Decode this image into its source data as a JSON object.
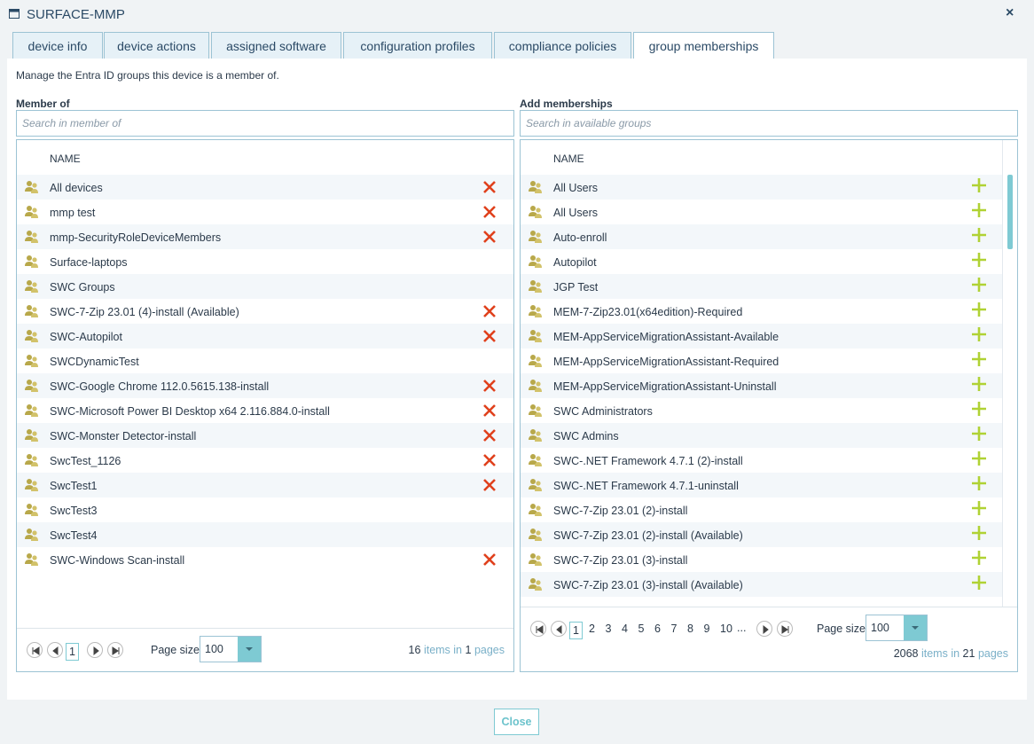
{
  "window": {
    "title": "SURFACE-MMP",
    "close": "×"
  },
  "tabs": [
    "device info",
    "device actions",
    "assigned software",
    "configuration profiles",
    "compliance policies",
    "group memberships"
  ],
  "description": "Manage the Entra ID groups this device is a member of.",
  "member_of": {
    "heading": "Member of",
    "search_placeholder": "Search in member of",
    "column": "NAME",
    "rows": [
      {
        "name": "All devices",
        "removable": true
      },
      {
        "name": "mmp test",
        "removable": true
      },
      {
        "name": "mmp-SecurityRoleDeviceMembers",
        "removable": true
      },
      {
        "name": "Surface-laptops",
        "removable": false
      },
      {
        "name": "SWC Groups",
        "removable": false
      },
      {
        "name": "SWC-7-Zip 23.01 (4)-install (Available)",
        "removable": true
      },
      {
        "name": "SWC-Autopilot",
        "removable": true
      },
      {
        "name": "SWCDynamicTest",
        "removable": false
      },
      {
        "name": "SWC-Google Chrome 112.0.5615.138-install",
        "removable": true
      },
      {
        "name": "SWC-Microsoft Power BI Desktop x64 2.116.884.0-install",
        "removable": true
      },
      {
        "name": "SWC-Monster Detector-install",
        "removable": true
      },
      {
        "name": "SwcTest_1126",
        "removable": true
      },
      {
        "name": "SwcTest1",
        "removable": true
      },
      {
        "name": "SwcTest3",
        "removable": false
      },
      {
        "name": "SwcTest4",
        "removable": false
      },
      {
        "name": "SWC-Windows Scan-install",
        "removable": true
      }
    ],
    "pager": {
      "pages": [
        1
      ],
      "page_size_label": "Page size:",
      "page_size": 100,
      "items": 16,
      "items_text": "items in",
      "page_count": 1,
      "pages_text": "pages"
    }
  },
  "add_memberships": {
    "heading": "Add memberships",
    "search_placeholder": "Search in available groups",
    "column": "NAME",
    "rows": [
      "All Users",
      "All Users",
      "Auto-enroll",
      "Autopilot",
      "JGP Test",
      "MEM-7-Zip23.01(x64edition)-Required",
      "MEM-AppServiceMigrationAssistant-Available",
      "MEM-AppServiceMigrationAssistant-Required",
      "MEM-AppServiceMigrationAssistant-Uninstall",
      "SWC Administrators",
      "SWC Admins",
      "SWC-.NET Framework 4.7.1 (2)-install",
      "SWC-.NET Framework 4.7.1-uninstall",
      "SWC-7-Zip 23.01 (2)-install",
      "SWC-7-Zip 23.01 (2)-install (Available)",
      "SWC-7-Zip 23.01 (3)-install",
      "SWC-7-Zip 23.01 (3)-install (Available)"
    ],
    "pager": {
      "pages": [
        1,
        2,
        3,
        4,
        5,
        6,
        7,
        8,
        9,
        10
      ],
      "ellipsis": "...",
      "page_size_label": "Page size:",
      "page_size": 100,
      "items": 2068,
      "items_text": "items in",
      "page_count": 21,
      "pages_text": "pages"
    }
  },
  "close_button": "Close"
}
